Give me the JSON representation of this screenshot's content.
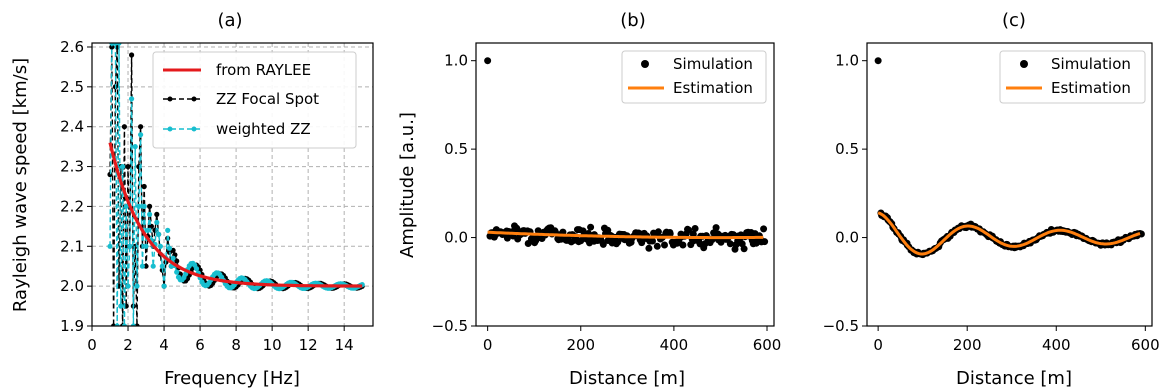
{
  "chart_data": [
    {
      "id": "a",
      "type": "line",
      "title": "(a)",
      "xlabel": "Frequency [Hz]",
      "ylabel": "Rayleigh wave speed [km/s]",
      "xlim": [
        0,
        15.6
      ],
      "ylim": [
        1.9,
        2.61
      ],
      "xticks": [
        0,
        2,
        4,
        6,
        8,
        10,
        12,
        14
      ],
      "yticks": [
        1.9,
        2.0,
        2.1,
        2.2,
        2.3,
        2.4,
        2.5,
        2.6
      ],
      "grid": true,
      "legend": "top-right",
      "series": [
        {
          "name": "from RAYLEE",
          "color": "#e41a1c",
          "style": "solid",
          "formula": "2.0 + 0.36*exp(-(f-1)/1.9)",
          "x_range": [
            1.0,
            15.0
          ]
        },
        {
          "name": "ZZ Focal Spot",
          "color": "#000000",
          "style": "dashed-marker"
        },
        {
          "name": "weighted ZZ",
          "color": "#17becf",
          "style": "dashed-marker"
        }
      ],
      "data_points": {
        "x": [
          1.0,
          1.1,
          1.2,
          1.3,
          1.4,
          1.5,
          1.6,
          1.7,
          1.8,
          1.9,
          2.0,
          2.1,
          2.2,
          2.3,
          2.4,
          2.5,
          2.6,
          2.7,
          2.8,
          2.9,
          3.0,
          3.2,
          3.4,
          3.6,
          3.8,
          4.0,
          4.2,
          4.4,
          4.6,
          4.8,
          5.0,
          5.3,
          5.6,
          5.9,
          6.2,
          6.5,
          6.8,
          7.1,
          7.4,
          7.7,
          8.0,
          8.5,
          9.0,
          9.5,
          10.0,
          10.5,
          11.0,
          11.5,
          12.0,
          12.5,
          13.0,
          13.5,
          14.0,
          14.5,
          15.0
        ],
        "zz_focal": [
          2.28,
          2.6,
          1.9,
          2.5,
          2.6,
          2.0,
          2.3,
          1.9,
          2.4,
          1.95,
          2.3,
          2.1,
          2.58,
          1.95,
          2.1,
          1.9,
          2.3,
          2.4,
          2.1,
          2.25,
          2.05,
          2.2,
          2.1,
          2.18,
          2.08,
          2.0,
          2.12,
          2.05,
          2.1,
          2.02,
          2.15,
          2.03,
          2.08,
          2.0,
          2.06,
          1.99,
          2.04,
          2.0,
          2.03,
          2.0,
          2.02,
          2.0,
          2.02,
          2.0,
          2.01,
          2.0,
          2.015,
          2.0,
          2.01,
          2.0,
          2.01,
          2.0,
          2.005,
          2.0,
          2.0
        ],
        "weighted_zz": [
          2.1,
          2.61,
          2.61,
          2.61,
          1.9,
          2.61,
          1.95,
          2.3,
          1.9,
          2.2,
          2.0,
          2.1,
          2.47,
          1.9,
          2.35,
          2.0,
          2.2,
          2.38,
          2.05,
          2.2,
          2.1,
          2.18,
          2.05,
          2.16,
          2.1,
          2.0,
          2.14,
          2.05,
          2.12,
          2.0,
          2.14,
          2.02,
          2.08,
          2.01,
          2.05,
          1.99,
          2.05,
          2.0,
          2.03,
          1.99,
          2.025,
          2.0,
          2.02,
          2.0,
          2.012,
          2.0,
          2.01,
          2.0,
          2.008,
          1.999,
          2.01,
          2.0,
          2.006,
          2.0,
          2.005
        ]
      }
    },
    {
      "id": "b",
      "type": "scatter",
      "title": "(b)",
      "xlabel": "Distance [m]",
      "ylabel": "Amplitude [a.u.]",
      "xlim": [
        -25,
        615
      ],
      "ylim": [
        -0.5,
        1.1
      ],
      "xticks": [
        0,
        200,
        400,
        600
      ],
      "yticks": [
        -0.5,
        0.0,
        0.5,
        1.0
      ],
      "legend": "top-right",
      "series": [
        {
          "name": "Simulation",
          "color": "#000000",
          "marker": "dot"
        },
        {
          "name": "Estimation",
          "color": "#ff7f0e",
          "style": "solid"
        }
      ],
      "first_point": {
        "x": 0,
        "y": 1.0
      },
      "scatter_x_range": [
        5,
        595
      ],
      "scatter_count": 200,
      "scatter_spread": 0.055,
      "estimation": {
        "formula": "0.03 - 0.00008*x + 0.0000001*x^2 (approx)",
        "points": [
          [
            0,
            0.03
          ],
          [
            100,
            0.02
          ],
          [
            200,
            0.005
          ],
          [
            300,
            -0.008
          ],
          [
            400,
            -0.012
          ],
          [
            500,
            -0.012
          ],
          [
            590,
            -0.01
          ]
        ]
      }
    },
    {
      "id": "c",
      "type": "scatter",
      "title": "(c)",
      "xlabel": "Distance [m]",
      "ylabel": "",
      "xlim": [
        -25,
        615
      ],
      "ylim": [
        -0.5,
        1.1
      ],
      "xticks": [
        0,
        200,
        400,
        600
      ],
      "yticks": [
        -0.5,
        0.0,
        0.5,
        1.0
      ],
      "legend": "top-right",
      "series": [
        {
          "name": "Simulation",
          "color": "#000000",
          "marker": "dot"
        },
        {
          "name": "Estimation",
          "color": "#ff7f0e",
          "style": "solid"
        }
      ],
      "first_point": {
        "x": 0,
        "y": 1.0
      },
      "scatter_x_range": [
        5,
        590
      ],
      "scatter_count": 200,
      "scatter_spread": 0.015,
      "estimation": {
        "formula": "damped oscillation",
        "amp": 0.14,
        "period": 205,
        "decay": 180
      }
    }
  ]
}
